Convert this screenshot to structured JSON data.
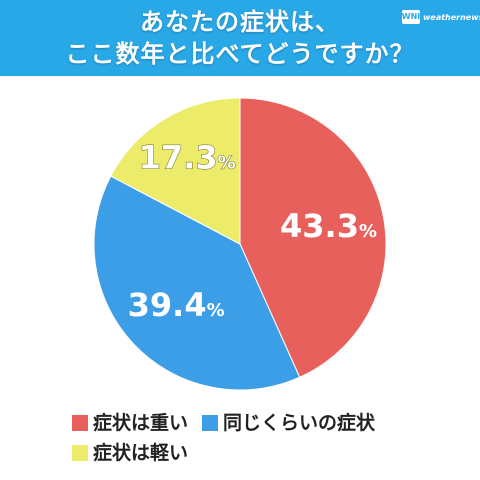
{
  "header": {
    "title_line1": "あなたの症状は、",
    "title_line2": "ここ数年と比べてどうですか？",
    "logo_mark": "WNI",
    "logo_text": "weathernews",
    "background": "#29a8e8"
  },
  "chart_data": {
    "type": "pie",
    "title": "あなたの症状は、ここ数年と比べてどうですか？",
    "labels": [
      "症状は重い",
      "同じくらいの症状",
      "症状は軽い"
    ],
    "values": [
      43.3,
      39.4,
      17.3
    ],
    "value_labels": [
      "43.3%",
      "39.4%",
      "17.3%"
    ],
    "colors": [
      "#e8605c",
      "#3d9ee8",
      "#ecec6a"
    ],
    "start": "12 o'clock",
    "direction": "clockwise",
    "legend_position": "bottom"
  },
  "legend": {
    "items": [
      {
        "label": "症状は重い",
        "color": "#e8605c"
      },
      {
        "label": "同じくらいの症状",
        "color": "#3d9ee8"
      },
      {
        "label": "症状は軽い",
        "color": "#ecec6a"
      }
    ]
  }
}
